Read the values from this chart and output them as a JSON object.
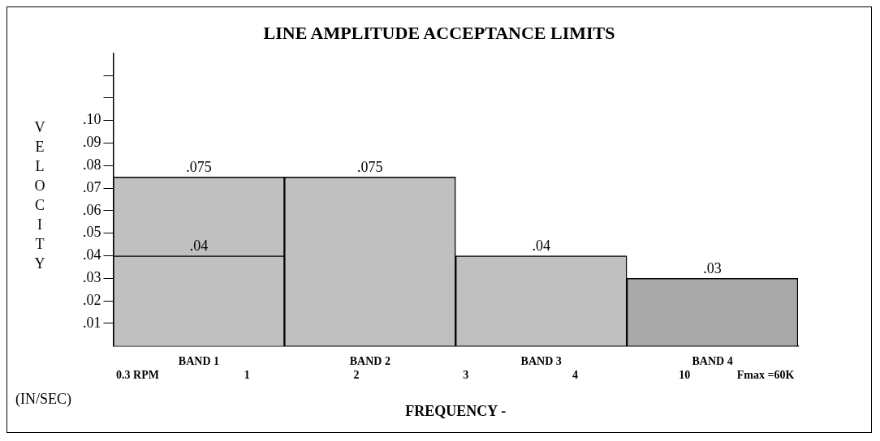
{
  "chart_data": {
    "type": "bar",
    "title": "LINE AMPLITUDE ACCEPTANCE LIMITS",
    "ylabel": "VELOCITY",
    "xlabel": "FREQUENCY -",
    "categories": [
      "BAND 1",
      "BAND 2",
      "BAND 3",
      "BAND 4"
    ],
    "series": [
      {
        "colors": [
          "#c0c0c0",
          "#c0c0c0",
          "#c0c0c0",
          "#a9a9a9"
        ],
        "values": [
          0.075,
          0.075,
          0.04,
          0.03
        ],
        "value_labels": [
          ".075",
          ".075",
          ".04",
          ".03"
        ]
      },
      {
        "color": "#c0c0c0",
        "values": [
          0.04,
          null,
          null,
          null
        ],
        "value_labels": [
          ".04",
          null,
          null,
          null
        ]
      }
    ],
    "ylim": [
      0,
      0.13
    ],
    "yticks": [
      {
        "value": 0.01,
        "label": ".01"
      },
      {
        "value": 0.02,
        "label": ".02"
      },
      {
        "value": 0.03,
        "label": ".03"
      },
      {
        "value": 0.04,
        "label": ".04"
      },
      {
        "value": 0.05,
        "label": ".05"
      },
      {
        "value": 0.06,
        "label": ".06"
      },
      {
        "value": 0.07,
        "label": ".07"
      },
      {
        "value": 0.08,
        "label": ".08"
      },
      {
        "value": 0.09,
        "label": ".09"
      },
      {
        "value": 0.1,
        "label": ".10"
      },
      {
        "value": 0.11,
        "label": null
      },
      {
        "value": 0.12,
        "label": null
      }
    ],
    "grid": false,
    "legend": false,
    "annotations": [
      "(IN/SEC)",
      "0.3 RPM",
      "1",
      "2",
      "3",
      "4",
      "10",
      "Fmax =60K"
    ]
  }
}
